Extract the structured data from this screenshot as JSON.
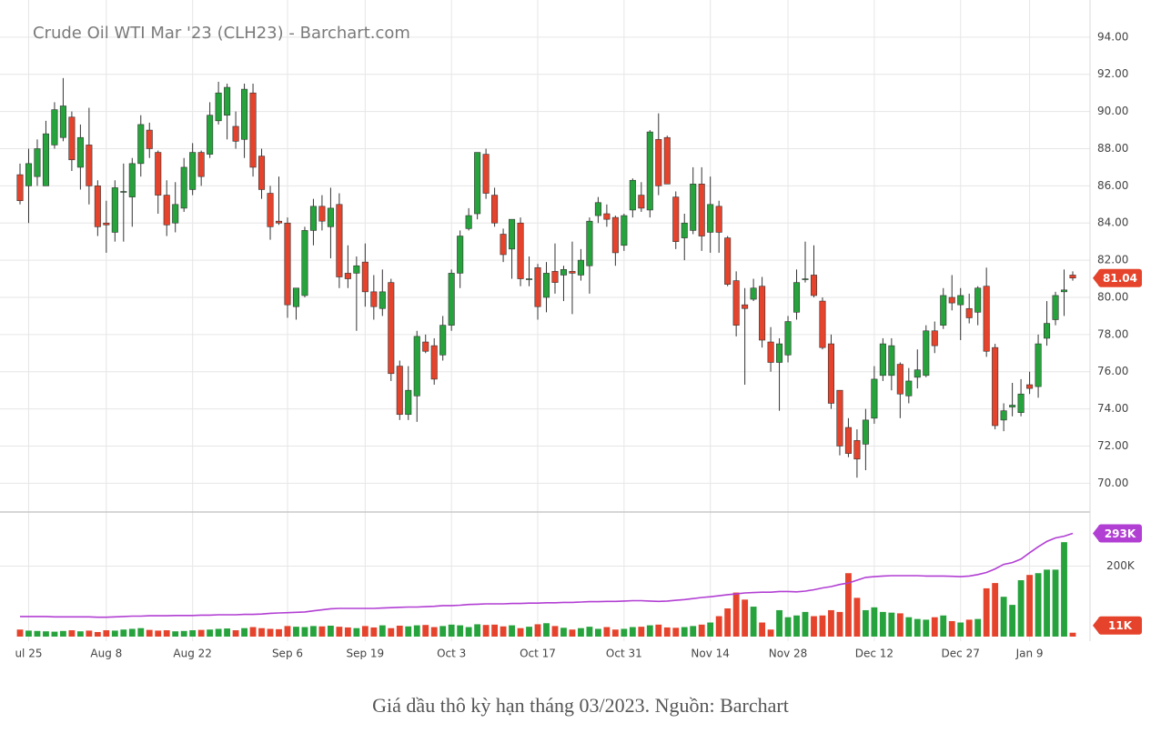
{
  "caption": "Giá dầu thô kỳ hạn tháng 03/2023. Nguồn: Barchart",
  "chart_data": [
    {
      "type": "candlestick",
      "title": "Crude Oil WTI Mar '23 (CLH23) - Barchart.com",
      "categories": [
        null,
        "ul 25",
        null,
        null,
        null,
        null,
        null,
        null,
        null,
        null,
        "Aug 8",
        null,
        null,
        null,
        null,
        null,
        null,
        null,
        null,
        null,
        "Aug 22",
        null,
        null,
        null,
        null,
        null,
        null,
        null,
        null,
        null,
        null,
        "Sep 6",
        null,
        null,
        null,
        null,
        null,
        null,
        null,
        null,
        "Sep 19",
        null,
        null,
        null,
        null,
        null,
        null,
        null,
        null,
        null,
        "Oct 3",
        null,
        null,
        null,
        null,
        null,
        null,
        null,
        null,
        null,
        "Oct 17",
        null,
        null,
        null,
        null,
        null,
        null,
        null,
        null,
        null,
        "Oct 31",
        null,
        null,
        null,
        null,
        null,
        null,
        null,
        null,
        null,
        "Nov 14",
        null,
        null,
        null,
        null,
        null,
        null,
        null,
        null,
        "Nov 28",
        null,
        null,
        null,
        null,
        null,
        null,
        null,
        null,
        null,
        "Dec 12",
        null,
        null,
        null,
        null,
        null,
        null,
        null,
        null,
        null,
        "Dec 27",
        null,
        null,
        null,
        null,
        null,
        null,
        null,
        "Jan 9",
        null,
        null,
        null,
        null,
        null
      ],
      "open": [
        86.6,
        86,
        86.5,
        86,
        88.2,
        88.6,
        89.7,
        87,
        88.2,
        86,
        84,
        83.5,
        85.7,
        85.4,
        87.2,
        89,
        87.8,
        85.5,
        84,
        84.8,
        85.8,
        87.8,
        87.7,
        89.5,
        89.8,
        89.2,
        88.5,
        91,
        87.6,
        85.6,
        84.1,
        84,
        79.5,
        80.1,
        83.6,
        84.9,
        83.8,
        85,
        81.3,
        81.3,
        81.9,
        80.3,
        79.4,
        80.8,
        76.3,
        73.7,
        74.7,
        77.6,
        77.4,
        76.9,
        78.5,
        81.3,
        83.7,
        84.5,
        87.7,
        85.5,
        83.4,
        82.6,
        84,
        81,
        81.6,
        80,
        81.4,
        81.2,
        81.4,
        81.2,
        81.7,
        84.4,
        84.5,
        84.3,
        82.8,
        84.7,
        85.5,
        84.7,
        88.5,
        88.6,
        85.4,
        83.2,
        83.6,
        86.1,
        83.5,
        84.9,
        83.2,
        80.9,
        79.6,
        79.9,
        80.6,
        77.6,
        76.5,
        76.9,
        79.2,
        81,
        81.2,
        79.8,
        77.5,
        75,
        73,
        72.3,
        72.1,
        73.5,
        75.8,
        75.8,
        76.4,
        74.7,
        75.7,
        75.8,
        78.2,
        78.5,
        80,
        79.6,
        79.4,
        79.2,
        80.6,
        77.3,
        73.4,
        74.1,
        73.8,
        75.3,
        75.2,
        77.8,
        78.8,
        80.3,
        81.2
      ],
      "high": [
        87.2,
        88,
        88.5,
        89.5,
        90.5,
        91.8,
        90,
        89.3,
        90.2,
        86.3,
        85.2,
        86.3,
        87.2,
        87.5,
        89.8,
        89.4,
        87.9,
        86.3,
        86.2,
        87.5,
        88.3,
        87.9,
        90.5,
        91.6,
        91.5,
        90,
        91.5,
        91.5,
        88,
        86,
        86.5,
        84.3,
        80.5,
        83.8,
        85.3,
        85.5,
        85.9,
        85.6,
        82.8,
        82.2,
        82.9,
        81.2,
        81.5,
        81,
        76.6,
        76.3,
        78.2,
        78,
        77.8,
        79,
        81.5,
        83.6,
        84.8,
        87.8,
        88,
        85.9,
        83.7,
        84.2,
        84.3,
        82.2,
        81.8,
        81.9,
        82.9,
        81.7,
        83,
        82.6,
        84.3,
        85.4,
        85,
        84.4,
        84.5,
        86.4,
        86.2,
        89,
        89.9,
        88.7,
        85.7,
        84.5,
        87,
        87,
        86.5,
        85.2,
        83.3,
        81.4,
        80.5,
        81,
        81.1,
        78.4,
        77.8,
        79,
        81.5,
        83,
        82.8,
        80,
        78,
        75,
        73.5,
        72.9,
        74,
        76.3,
        77.8,
        77.8,
        76.5,
        76.2,
        77.2,
        78.5,
        78.7,
        80.5,
        81.2,
        80.5,
        80.2,
        80.6,
        81.6,
        77.5,
        74.3,
        75.4,
        75.6,
        76,
        78,
        79.8,
        80.3,
        81.5,
        81.4
      ],
      "low": [
        85,
        84,
        86,
        86,
        88,
        88.4,
        86.8,
        85.8,
        85,
        83.3,
        82.4,
        83,
        83,
        83.8,
        86.5,
        87.5,
        84.5,
        83.3,
        83.5,
        84.6,
        85.5,
        86,
        87.5,
        89.3,
        88.5,
        88,
        87.5,
        86.5,
        85.3,
        83.1,
        83.9,
        78.9,
        78.8,
        80,
        82.8,
        83.6,
        82.1,
        80.5,
        80.5,
        78.2,
        79.5,
        78.8,
        79,
        75.5,
        73.4,
        73.4,
        73.3,
        77,
        75.3,
        76.6,
        78.2,
        80.5,
        83.6,
        84.2,
        85.3,
        83.8,
        81.9,
        81,
        80.6,
        80.6,
        78.8,
        79.2,
        80.2,
        79.8,
        79.1,
        80.9,
        80.2,
        84,
        83.8,
        81.7,
        82.5,
        84.3,
        84.6,
        84.3,
        85.5,
        86.1,
        82.6,
        82,
        83.4,
        82.5,
        82.4,
        82.4,
        80.6,
        77.9,
        75.3,
        79.8,
        77.3,
        76,
        73.9,
        76.5,
        78.8,
        80.8,
        80,
        77.2,
        74,
        71.5,
        71.4,
        70.3,
        70.7,
        73.2,
        75.5,
        75,
        73.5,
        74.3,
        75.1,
        75.7,
        77,
        78.3,
        79.3,
        77.7,
        78.6,
        78.5,
        76.8,
        72.9,
        72.8,
        73.6,
        73.6,
        74.8,
        74.6,
        77.4,
        78.5,
        79,
        80.9
      ],
      "close": [
        85.2,
        87.2,
        88,
        88.8,
        90.1,
        90.3,
        87.4,
        88.6,
        86,
        83.8,
        83.9,
        85.9,
        85.7,
        87.2,
        89.3,
        88,
        85.5,
        83.9,
        85,
        87,
        87.8,
        86.5,
        89.8,
        91,
        91.3,
        88.4,
        91.2,
        87,
        85.8,
        83.8,
        84,
        79.6,
        80.5,
        83.6,
        84.9,
        84.1,
        84.8,
        81.1,
        81,
        81.7,
        80.3,
        79.5,
        80.3,
        75.9,
        73.7,
        75,
        77.9,
        77.1,
        75.6,
        78.5,
        81.3,
        83.3,
        84.4,
        87.8,
        85.6,
        84,
        82.3,
        84.2,
        81,
        81,
        79.5,
        81.3,
        80.8,
        81.5,
        81.3,
        82,
        84.1,
        85.1,
        84.2,
        82.4,
        84.4,
        86.3,
        84.8,
        88.9,
        86,
        86.1,
        83,
        84,
        86.1,
        83.3,
        85,
        83.5,
        80.7,
        78.5,
        79.4,
        80.5,
        77.7,
        76.5,
        77.5,
        78.7,
        80.8,
        81,
        80.1,
        77.3,
        74.3,
        72,
        71.6,
        71.3,
        73.4,
        75.6,
        77.5,
        77.4,
        74.8,
        75.5,
        76.1,
        78.2,
        77.4,
        80.1,
        79.7,
        80.1,
        78.9,
        80.5,
        77.1,
        73.1,
        73.9,
        74.2,
        74.8,
        75.1,
        77.5,
        78.6,
        80.1,
        80.4,
        81.04
      ],
      "up_color": "#26a33c",
      "down_color": "#e5432c",
      "ylim": [
        68.5,
        96
      ],
      "yticks": [
        {
          "value": 70,
          "label": "70.00"
        },
        {
          "value": 72,
          "label": "72.00"
        },
        {
          "value": 74,
          "label": "74.00"
        },
        {
          "value": 76,
          "label": "76.00"
        },
        {
          "value": 78,
          "label": "78.00"
        },
        {
          "value": 80,
          "label": "80.00"
        },
        {
          "value": 82,
          "label": "82.00"
        },
        {
          "value": 84,
          "label": "84.00"
        },
        {
          "value": 86,
          "label": "86.00"
        },
        {
          "value": 88,
          "label": "88.00"
        },
        {
          "value": 90,
          "label": "90.00"
        },
        {
          "value": 92,
          "label": "92.00"
        },
        {
          "value": 94,
          "label": "94.00"
        }
      ],
      "grid": true,
      "last_label": {
        "value": 81.04,
        "label": "81.04"
      }
    },
    {
      "type": "volume",
      "values": [
        20,
        17,
        16,
        15,
        14,
        16,
        18,
        15,
        17,
        13,
        18,
        17,
        20,
        22,
        24,
        19,
        17,
        18,
        15,
        16,
        18,
        19,
        20,
        22,
        23,
        18,
        24,
        27,
        24,
        22,
        21,
        30,
        28,
        27,
        30,
        29,
        31,
        28,
        26,
        24,
        30,
        26,
        32,
        24,
        31,
        29,
        32,
        33,
        27,
        30,
        34,
        32,
        27,
        35,
        33,
        34,
        29,
        32,
        24,
        28,
        35,
        38,
        30,
        25,
        20,
        24,
        28,
        22,
        27,
        20,
        22,
        27,
        28,
        32,
        34,
        26,
        25,
        27,
        30,
        34,
        40,
        58,
        80,
        125,
        105,
        85,
        40,
        20,
        75,
        55,
        60,
        70,
        58,
        60,
        75,
        70,
        180,
        110,
        75,
        83,
        70,
        68,
        66,
        55,
        50,
        48,
        55,
        60,
        44,
        40,
        48,
        50,
        137,
        152,
        113,
        90,
        160,
        175,
        180,
        190,
        190,
        268,
        11
      ],
      "line_values": [
        57,
        57,
        57,
        57,
        56,
        56,
        56,
        56,
        56,
        55,
        55,
        56,
        57,
        58,
        58,
        59,
        59,
        59,
        60,
        60,
        60,
        61,
        61,
        62,
        62,
        62,
        63,
        63,
        64,
        66,
        67,
        68,
        69,
        70,
        73,
        76,
        79,
        80,
        80,
        80,
        80,
        80,
        81,
        82,
        83,
        84,
        84,
        85,
        86,
        88,
        88,
        89,
        91,
        92,
        93,
        93,
        93,
        94,
        94,
        95,
        95,
        96,
        96,
        97,
        97,
        98,
        99,
        99,
        100,
        100,
        101,
        102,
        102,
        101,
        100,
        101,
        103,
        105,
        108,
        111,
        113,
        116,
        119,
        121,
        124,
        125,
        126,
        126,
        128,
        128,
        127,
        129,
        133,
        138,
        142,
        148,
        152,
        160,
        168,
        170,
        172,
        173,
        173,
        173,
        173,
        172,
        172,
        172,
        171,
        170,
        172,
        176,
        182,
        192,
        205,
        210,
        220,
        238,
        255,
        270,
        280,
        285,
        293
      ],
      "line_color": "#b23fd3",
      "ylim": [
        0,
        351
      ],
      "yticks": [
        {
          "value": 200,
          "label": "200K"
        }
      ],
      "last_label": {
        "value": 11,
        "label": "11K"
      },
      "line_last_label": {
        "value": 293,
        "label": "293K"
      }
    }
  ]
}
